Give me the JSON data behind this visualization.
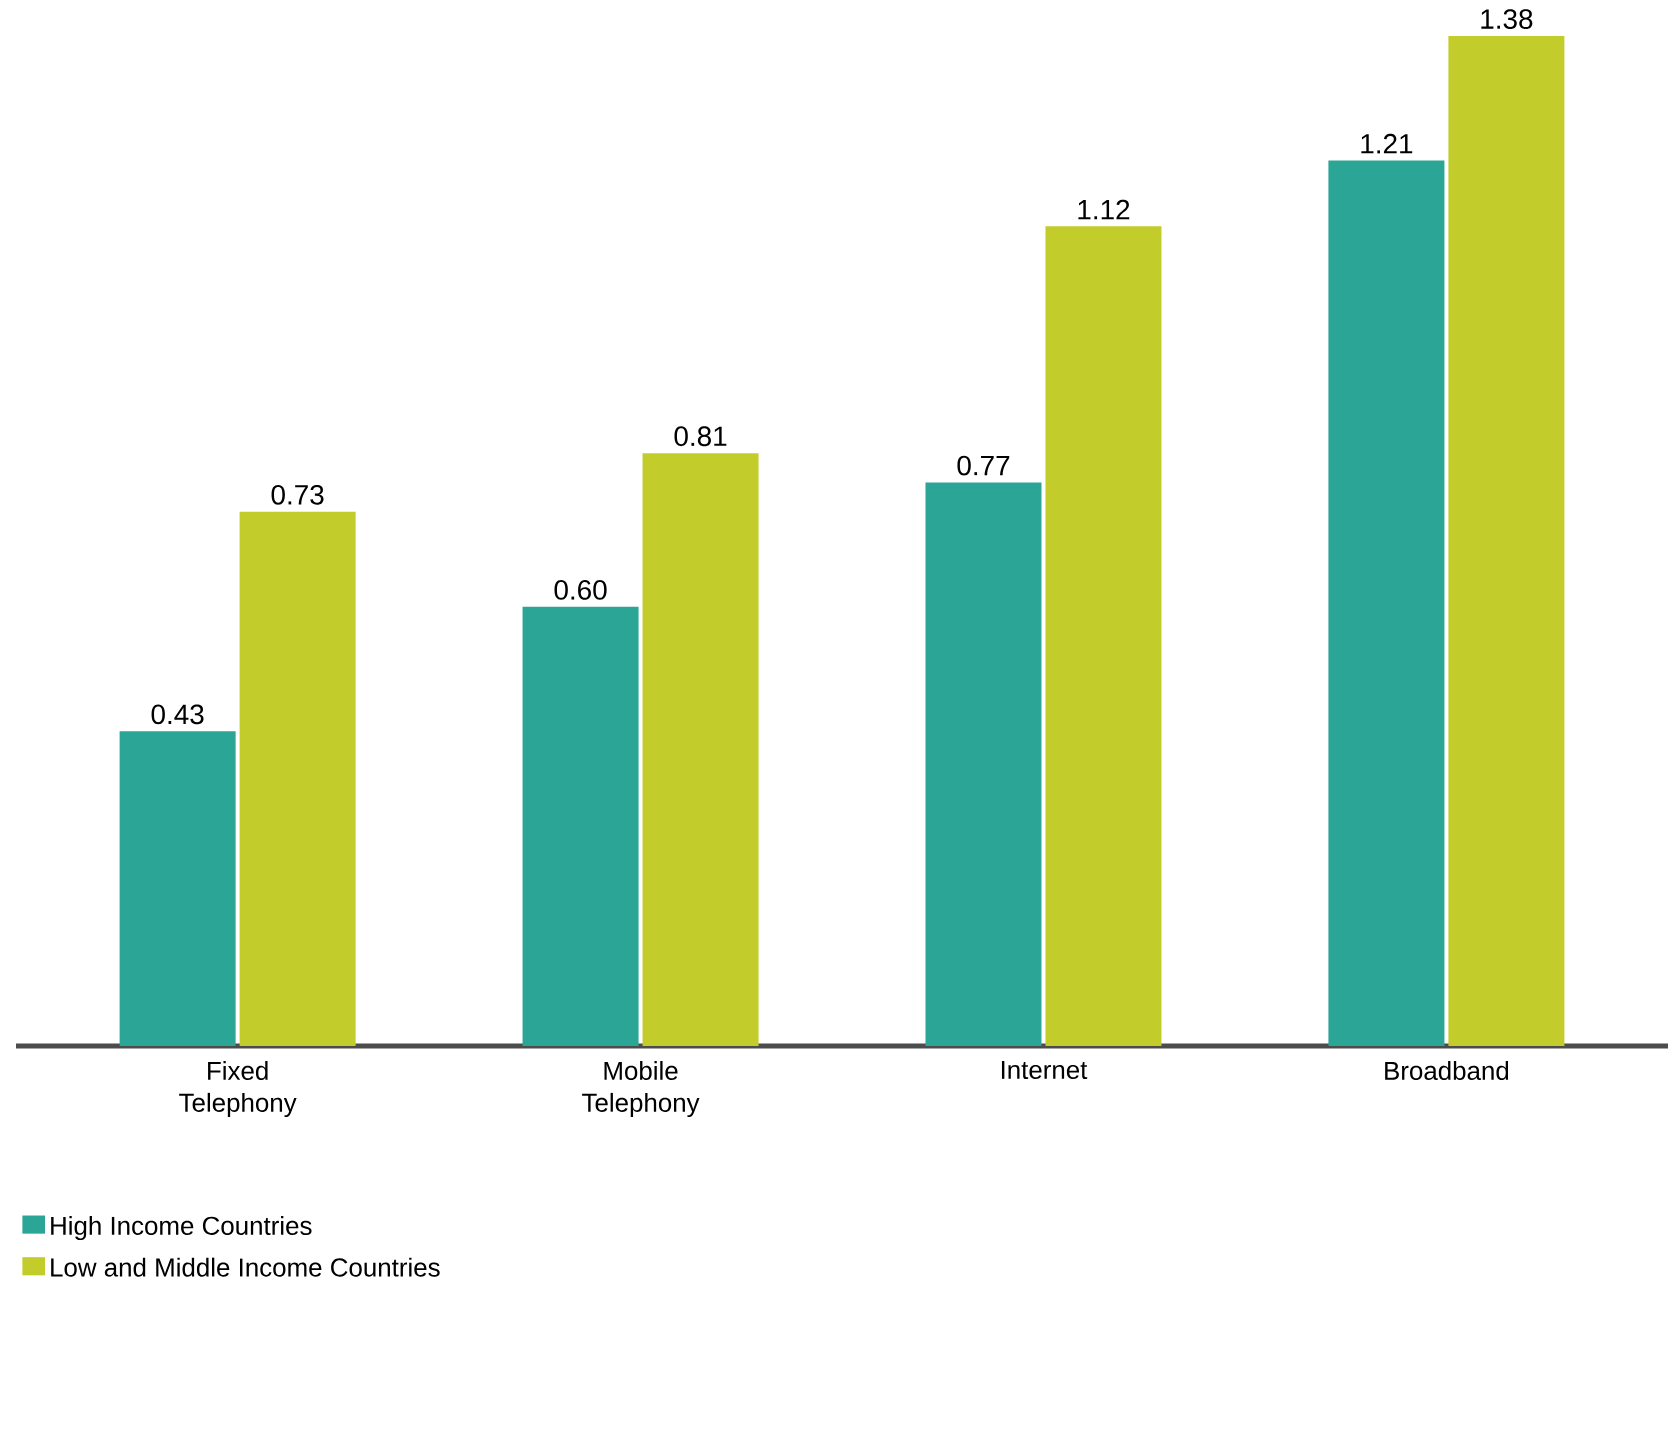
{
  "chart_data": {
    "type": "bar",
    "categories": [
      "Fixed Telephony",
      "Mobile Telephony",
      "Internet",
      "Broadband"
    ],
    "series": [
      {
        "name": "High Income Countries",
        "color": "#2aa596",
        "values": [
          0.43,
          0.6,
          0.77,
          1.21
        ],
        "value_labels": [
          "0.43",
          "0.60",
          "0.77",
          "1.21"
        ]
      },
      {
        "name": "Low and Middle Income Countries",
        "color": "#c2cc2a",
        "values": [
          0.73,
          0.81,
          1.12,
          1.38
        ],
        "value_labels": [
          "0.73",
          "0.81",
          "1.12",
          "1.38"
        ]
      }
    ],
    "legend": "bottom left"
  }
}
